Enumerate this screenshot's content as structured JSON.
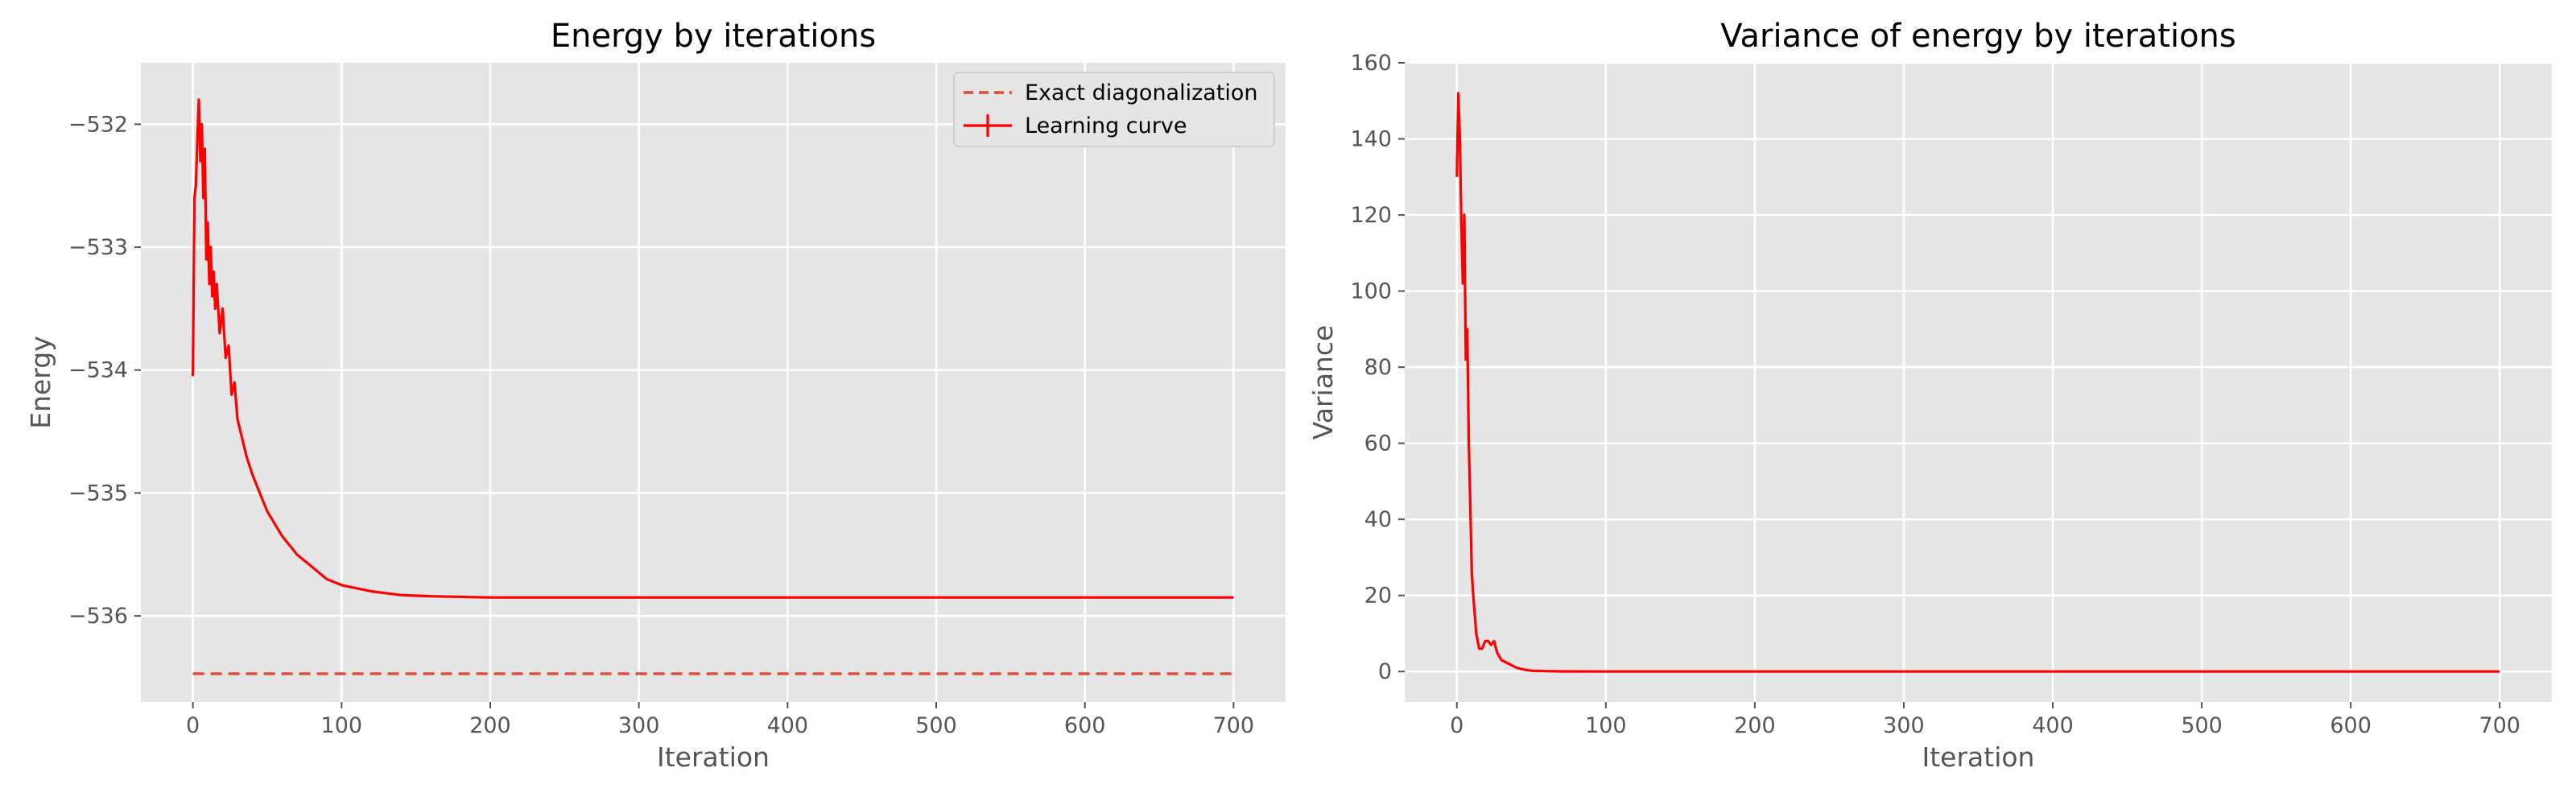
{
  "chart_data": [
    {
      "type": "line",
      "title": "Energy by iterations",
      "xlabel": "Iteration",
      "ylabel": "Energy",
      "xlim": [
        -35,
        735
      ],
      "ylim": [
        -536.7,
        -531.5
      ],
      "xticks": [
        0,
        100,
        200,
        300,
        400,
        500,
        600,
        700
      ],
      "xtick_labels": [
        "0",
        "100",
        "200",
        "300",
        "400",
        "500",
        "600",
        "700"
      ],
      "yticks": [
        -532,
        -533,
        -534,
        -535,
        -536
      ],
      "ytick_labels": [
        "−532",
        "−533",
        "−534",
        "−535",
        "−536"
      ],
      "grid": true,
      "legend_position": "top-right",
      "series": [
        {
          "name": "Exact diagonalization",
          "style": "dashed",
          "color": "#e24a33",
          "x": [
            0,
            700
          ],
          "y": [
            -536.47,
            -536.47
          ]
        },
        {
          "name": "Learning curve",
          "style": "solid",
          "color": "#ff0000",
          "x": [
            0,
            1,
            2,
            3,
            4,
            5,
            6,
            7,
            8,
            9,
            10,
            11,
            12,
            13,
            14,
            15,
            16,
            18,
            20,
            22,
            24,
            26,
            28,
            30,
            33,
            36,
            40,
            45,
            50,
            55,
            60,
            70,
            80,
            90,
            100,
            120,
            140,
            160,
            200,
            300,
            400,
            500,
            600,
            700
          ],
          "y": [
            -534.05,
            -532.6,
            -532.5,
            -532.1,
            -531.8,
            -532.3,
            -532.0,
            -532.6,
            -532.2,
            -533.1,
            -532.8,
            -533.3,
            -533.0,
            -533.4,
            -533.2,
            -533.5,
            -533.3,
            -533.7,
            -533.5,
            -533.9,
            -533.8,
            -534.2,
            -534.1,
            -534.4,
            -534.55,
            -534.7,
            -534.85,
            -535.0,
            -535.15,
            -535.25,
            -535.35,
            -535.5,
            -535.6,
            -535.7,
            -535.75,
            -535.8,
            -535.83,
            -535.84,
            -535.85,
            -535.85,
            -535.85,
            -535.85,
            -535.85,
            -535.85
          ]
        }
      ]
    },
    {
      "type": "line",
      "title": "Variance of energy by iterations",
      "xlabel": "Iteration",
      "ylabel": "Variance",
      "xlim": [
        -35,
        735
      ],
      "ylim": [
        -8,
        160
      ],
      "xticks": [
        0,
        100,
        200,
        300,
        400,
        500,
        600,
        700
      ],
      "xtick_labels": [
        "0",
        "100",
        "200",
        "300",
        "400",
        "500",
        "600",
        "700"
      ],
      "yticks": [
        0,
        20,
        40,
        60,
        80,
        100,
        120,
        140,
        160
      ],
      "ytick_labels": [
        "0",
        "20",
        "40",
        "60",
        "80",
        "100",
        "120",
        "140",
        "160"
      ],
      "grid": true,
      "series": [
        {
          "style": "solid",
          "color": "#ff0000",
          "x": [
            0,
            1,
            2,
            3,
            4,
            5,
            6,
            7,
            8,
            9,
            10,
            11,
            12,
            13,
            15,
            17,
            19,
            21,
            23,
            25,
            27,
            30,
            35,
            40,
            45,
            50,
            60,
            70,
            100,
            200,
            400,
            700
          ],
          "y": [
            130,
            152,
            140,
            118,
            102,
            120,
            82,
            90,
            60,
            44,
            26,
            20,
            15,
            10,
            6,
            6,
            8,
            8,
            7,
            8,
            5,
            3,
            2,
            1,
            0.5,
            0.2,
            0.1,
            0.05,
            0,
            0,
            0,
            0
          ]
        }
      ]
    }
  ]
}
